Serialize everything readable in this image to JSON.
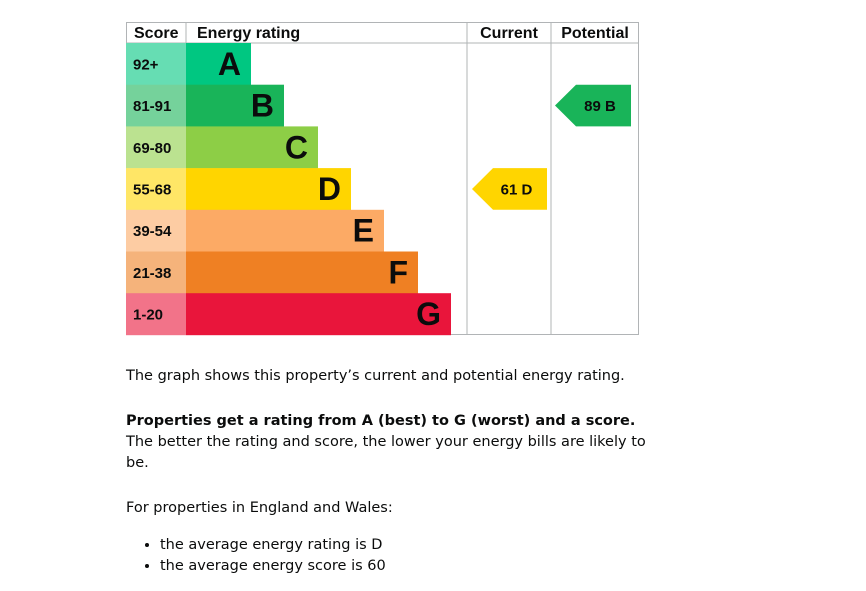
{
  "chart_data": {
    "type": "bar",
    "headers": {
      "score": "Score",
      "rating": "Energy rating",
      "current": "Current",
      "potential": "Potential"
    },
    "bands": [
      {
        "range": "92+",
        "letter": "A",
        "color": "#00c781",
        "score_bg": "#66ddb3"
      },
      {
        "range": "81-91",
        "letter": "B",
        "color": "#19b459",
        "score_bg": "#75d29b"
      },
      {
        "range": "69-80",
        "letter": "C",
        "color": "#8dce46",
        "score_bg": "#bbe290"
      },
      {
        "range": "55-68",
        "letter": "D",
        "color": "#ffd500",
        "score_bg": "#ffe666"
      },
      {
        "range": "39-54",
        "letter": "E",
        "color": "#fcaa65",
        "score_bg": "#fdcca3"
      },
      {
        "range": "21-38",
        "letter": "F",
        "color": "#ef8023",
        "score_bg": "#f5b37b"
      },
      {
        "range": "1-20",
        "letter": "G",
        "color": "#e9153b",
        "score_bg": "#f27389"
      }
    ],
    "current": {
      "score": 61,
      "letter": "D",
      "label": "61 D",
      "color": "#ffd500"
    },
    "potential": {
      "score": 89,
      "letter": "B",
      "label": "89 B",
      "color": "#19b459"
    }
  },
  "text": {
    "intro": "The graph shows this property’s current and potential energy rating.",
    "rating_bold": "Properties get a rating from A (best) to G (worst) and a score.",
    "rating_rest": " The better the rating and score, the lower your energy bills are likely to be.",
    "england_wales": "For properties in England and Wales:",
    "bullets": [
      "the average energy rating is D",
      "the average energy score is 60"
    ]
  }
}
